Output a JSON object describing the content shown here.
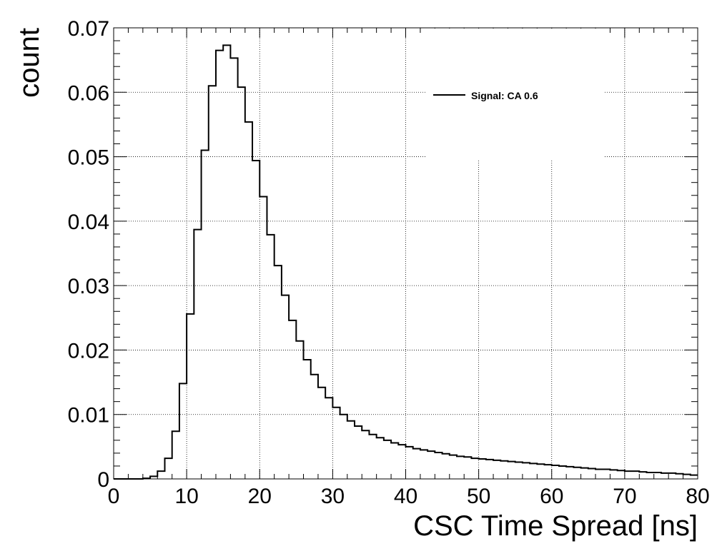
{
  "chart_data": {
    "type": "histogram",
    "xlabel": "CSC Time Spread [ns]",
    "ylabel": "count",
    "xlim": [
      0,
      80
    ],
    "ylim": [
      0,
      0.07
    ],
    "x_ticks": [
      "0",
      "10",
      "20",
      "30",
      "40",
      "50",
      "60",
      "70",
      "80"
    ],
    "y_ticks": [
      "0",
      "0.01",
      "0.02",
      "0.03",
      "0.04",
      "0.05",
      "0.06",
      "0.07"
    ],
    "grid": true,
    "legend_position": "top-right",
    "bin_width": 1,
    "series": [
      {
        "name": "Signal: CA 0.6",
        "color": "#000000",
        "bin_edges_start": 0,
        "values": [
          0,
          0,
          0,
          0,
          0.0001,
          0.0004,
          0.0012,
          0.0032,
          0.0074,
          0.0148,
          0.0256,
          0.0387,
          0.051,
          0.061,
          0.0665,
          0.0673,
          0.0653,
          0.0608,
          0.0554,
          0.0494,
          0.0438,
          0.0379,
          0.0331,
          0.0285,
          0.0246,
          0.0214,
          0.0185,
          0.0162,
          0.0142,
          0.0126,
          0.0111,
          0.01,
          0.009,
          0.0082,
          0.0075,
          0.0069,
          0.0064,
          0.006,
          0.0056,
          0.0053,
          0.005,
          0.0047,
          0.0045,
          0.0043,
          0.0041,
          0.0039,
          0.0037,
          0.0035,
          0.0034,
          0.0032,
          0.0031,
          0.003,
          0.0029,
          0.0028,
          0.0027,
          0.0026,
          0.0025,
          0.0024,
          0.0023,
          0.0022,
          0.0021,
          0.002,
          0.0019,
          0.0018,
          0.0017,
          0.0016,
          0.0015,
          0.0015,
          0.0014,
          0.0013,
          0.0012,
          0.0012,
          0.0011,
          0.001,
          0.001,
          0.0009,
          0.0009,
          0.0008,
          0.0007,
          0.0006
        ]
      }
    ]
  }
}
